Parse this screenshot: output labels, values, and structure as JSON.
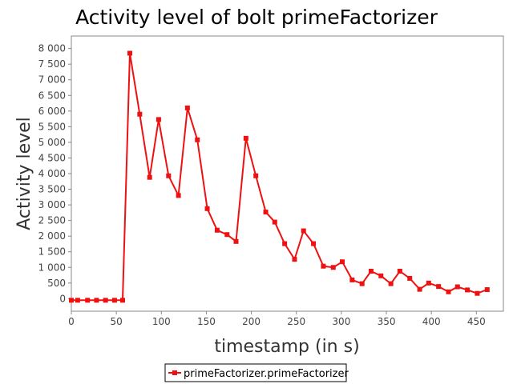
{
  "chart_data": {
    "type": "line",
    "title": "Activity level of bolt primeFactorizer",
    "xlabel": "timestamp (in s)",
    "ylabel": "Activity level",
    "xlim": [
      0,
      480
    ],
    "ylim": [
      -400,
      8400
    ],
    "x_ticks": [
      0,
      50,
      100,
      150,
      200,
      250,
      300,
      350,
      400,
      450
    ],
    "x_tick_labels": [
      "0",
      "50",
      "100",
      "150",
      "200",
      "250",
      "300",
      "350",
      "400",
      "450"
    ],
    "y_ticks": [
      0,
      500,
      1000,
      1500,
      2000,
      2500,
      3000,
      3500,
      4000,
      4500,
      5000,
      5500,
      6000,
      6500,
      7000,
      7500,
      8000
    ],
    "y_tick_labels": [
      "0",
      "500",
      "1 000",
      "1 500",
      "2 000",
      "2 500",
      "3 000",
      "3 500",
      "4 000",
      "4 500",
      "5 000",
      "5 500",
      "6 000",
      "6 500",
      "7 000",
      "7 500",
      "8 000"
    ],
    "grid": false,
    "legend_position": "bottom-center",
    "series": [
      {
        "name": "primeFactorizer.primeFactorizer",
        "color": "#ee1111",
        "marker": "square",
        "x": [
          0,
          7,
          18,
          28,
          38,
          48,
          57,
          65,
          76,
          87,
          97,
          108,
          119,
          129,
          140,
          151,
          162,
          173,
          183,
          194,
          205,
          216,
          226,
          237,
          248,
          258,
          269,
          280,
          291,
          301,
          312,
          323,
          333,
          344,
          355,
          365,
          376,
          387,
          397,
          408,
          419,
          429,
          440,
          451,
          462
        ],
        "y": [
          -50,
          -50,
          -50,
          -50,
          -50,
          -50,
          -50,
          7850,
          5900,
          3880,
          5730,
          3930,
          3300,
          6100,
          5080,
          2880,
          2190,
          2050,
          1830,
          5130,
          3930,
          2770,
          2450,
          1760,
          1260,
          2170,
          1760,
          1040,
          1000,
          1180,
          600,
          480,
          880,
          730,
          480,
          880,
          650,
          300,
          500,
          390,
          220,
          380,
          280,
          170,
          290
        ]
      }
    ]
  }
}
